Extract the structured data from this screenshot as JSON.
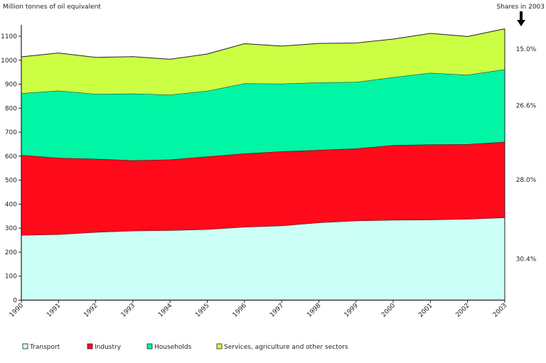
{
  "chart_data": {
    "type": "area",
    "stacked": true,
    "ylabel": "Million tonnes of oil equivalent",
    "annotation_title": "Shares in 2003",
    "ylim": [
      0,
      1100
    ],
    "yticks": [
      "0",
      "100",
      "200",
      "300",
      "400",
      "500",
      "600",
      "700",
      "800",
      "900",
      "1000",
      "1100"
    ],
    "x": [
      "1990",
      "1991",
      "1992",
      "1993",
      "1994",
      "1995",
      "1996",
      "1997",
      "1998",
      "1999",
      "2000",
      "2001",
      "2002",
      "2003"
    ],
    "series": [
      {
        "name": "Transport",
        "color": "#ccfff5",
        "share_2003": "30.4%",
        "values": [
          271,
          274,
          283,
          289,
          291,
          295,
          305,
          310,
          323,
          331,
          334,
          335,
          338,
          344
        ]
      },
      {
        "name": "Industry",
        "color": "#ff0a1a",
        "share_2003": "28.0%",
        "values": [
          334,
          319,
          306,
          294,
          295,
          304,
          306,
          310,
          303,
          301,
          312,
          314,
          312,
          316
        ]
      },
      {
        "name": "Households",
        "color": "#00f5a5",
        "share_2003": "26.6%",
        "values": [
          257,
          280,
          270,
          278,
          270,
          273,
          292,
          282,
          281,
          277,
          283,
          298,
          289,
          302
        ]
      },
      {
        "name": "Services, agriculture and other sectors",
        "color": "#ccff44",
        "share_2003": "15.0%",
        "values": [
          152,
          157,
          153,
          154,
          148,
          154,
          166,
          157,
          163,
          163,
          159,
          165,
          160,
          169
        ]
      }
    ],
    "legend_position": "bottom"
  }
}
